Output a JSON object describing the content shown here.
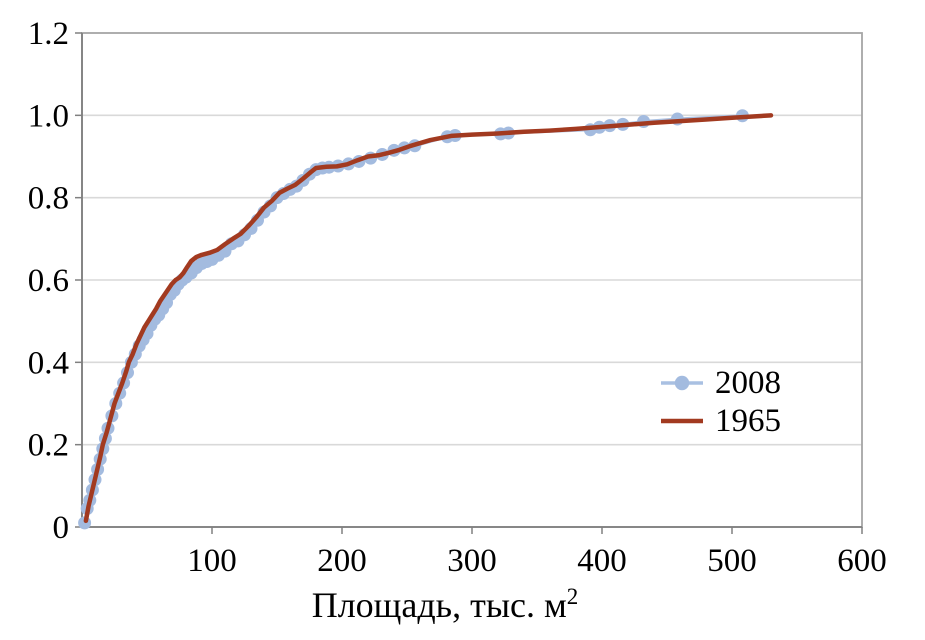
{
  "chart_data": {
    "type": "line",
    "title": "",
    "xlabel": "Площадь, тыс. м",
    "xlabel_sup": "2",
    "ylabel": "",
    "xlim": [
      0,
      600
    ],
    "ylim": [
      0,
      1.2
    ],
    "x_ticks": [
      100,
      200,
      300,
      400,
      500,
      600
    ],
    "y_tick_values": [
      0,
      0.2,
      0.4,
      0.6,
      0.8,
      1.0,
      1.2
    ],
    "y_tick_labels": [
      "0",
      "0.2",
      "0.4",
      "0.6",
      "0.8",
      "1.0",
      "1.2"
    ],
    "grid": "horizontal",
    "legend_position": "inside-right",
    "colors": {
      "grid": "#d9d9d9",
      "frame": "#a6a6a6",
      "axis": "#808080",
      "text": "#000000",
      "background": "#ffffff"
    },
    "series": [
      {
        "name": "2008",
        "style": "line-with-markers",
        "color": "#a9c0e2",
        "marker_color": "#a3bbdf",
        "marker_radius": 6.5,
        "line_width": 3,
        "points": [
          [
            2,
            0.01
          ],
          [
            4,
            0.045
          ],
          [
            6,
            0.065
          ],
          [
            8,
            0.09
          ],
          [
            10,
            0.115
          ],
          [
            12,
            0.14
          ],
          [
            14,
            0.165
          ],
          [
            16,
            0.19
          ],
          [
            18,
            0.215
          ],
          [
            20,
            0.24
          ],
          [
            23,
            0.27
          ],
          [
            26,
            0.3
          ],
          [
            29,
            0.325
          ],
          [
            32,
            0.35
          ],
          [
            35,
            0.375
          ],
          [
            38,
            0.4
          ],
          [
            41,
            0.42
          ],
          [
            44,
            0.44
          ],
          [
            47,
            0.455
          ],
          [
            50,
            0.47
          ],
          [
            53,
            0.49
          ],
          [
            56,
            0.505
          ],
          [
            59,
            0.515
          ],
          [
            62,
            0.53
          ],
          [
            65,
            0.545
          ],
          [
            68,
            0.565
          ],
          [
            71,
            0.575
          ],
          [
            74,
            0.59
          ],
          [
            77,
            0.6
          ],
          [
            80,
            0.607
          ],
          [
            84,
            0.617
          ],
          [
            88,
            0.63
          ],
          [
            92,
            0.64
          ],
          [
            96,
            0.645
          ],
          [
            100,
            0.65
          ],
          [
            105,
            0.66
          ],
          [
            110,
            0.67
          ],
          [
            115,
            0.688
          ],
          [
            120,
            0.695
          ],
          [
            125,
            0.71
          ],
          [
            130,
            0.725
          ],
          [
            135,
            0.745
          ],
          [
            140,
            0.765
          ],
          [
            145,
            0.78
          ],
          [
            150,
            0.8
          ],
          [
            155,
            0.81
          ],
          [
            160,
            0.82
          ],
          [
            165,
            0.828
          ],
          [
            170,
            0.842
          ],
          [
            175,
            0.857
          ],
          [
            180,
            0.868
          ],
          [
            185,
            0.872
          ],
          [
            190,
            0.874
          ],
          [
            197,
            0.877
          ],
          [
            205,
            0.882
          ],
          [
            213,
            0.888
          ],
          [
            222,
            0.896
          ],
          [
            231,
            0.905
          ],
          [
            240,
            0.915
          ],
          [
            248,
            0.921
          ],
          [
            256,
            0.926
          ],
          [
            281,
            0.948
          ],
          [
            287,
            0.951
          ],
          [
            322,
            0.955
          ],
          [
            328,
            0.957
          ],
          [
            391,
            0.965
          ],
          [
            398,
            0.971
          ],
          [
            406,
            0.975
          ],
          [
            416,
            0.978
          ],
          [
            432,
            0.985
          ],
          [
            458,
            0.991
          ],
          [
            508,
            0.999
          ]
        ]
      },
      {
        "name": "1965",
        "style": "line",
        "color": "#a23a20",
        "line_width": 4.5,
        "points": [
          [
            3,
            0.015
          ],
          [
            5,
            0.05
          ],
          [
            8,
            0.09
          ],
          [
            11,
            0.13
          ],
          [
            14,
            0.17
          ],
          [
            16,
            0.2
          ],
          [
            19,
            0.23
          ],
          [
            22,
            0.265
          ],
          [
            25,
            0.3
          ],
          [
            28,
            0.325
          ],
          [
            31,
            0.35
          ],
          [
            34,
            0.378
          ],
          [
            36,
            0.4
          ],
          [
            39,
            0.42
          ],
          [
            42,
            0.445
          ],
          [
            45,
            0.465
          ],
          [
            48,
            0.485
          ],
          [
            51,
            0.5
          ],
          [
            54,
            0.515
          ],
          [
            57,
            0.53
          ],
          [
            60,
            0.548
          ],
          [
            63,
            0.562
          ],
          [
            66,
            0.576
          ],
          [
            69,
            0.59
          ],
          [
            72,
            0.6
          ],
          [
            75,
            0.606
          ],
          [
            78,
            0.617
          ],
          [
            81,
            0.632
          ],
          [
            84,
            0.646
          ],
          [
            88,
            0.656
          ],
          [
            92,
            0.661
          ],
          [
            98,
            0.666
          ],
          [
            104,
            0.673
          ],
          [
            110,
            0.687
          ],
          [
            116,
            0.7
          ],
          [
            122,
            0.712
          ],
          [
            128,
            0.731
          ],
          [
            134,
            0.752
          ],
          [
            140,
            0.776
          ],
          [
            146,
            0.792
          ],
          [
            152,
            0.812
          ],
          [
            158,
            0.822
          ],
          [
            164,
            0.831
          ],
          [
            170,
            0.846
          ],
          [
            176,
            0.862
          ],
          [
            180,
            0.872
          ],
          [
            188,
            0.875
          ],
          [
            196,
            0.876
          ],
          [
            204,
            0.881
          ],
          [
            212,
            0.891
          ],
          [
            220,
            0.9
          ],
          [
            228,
            0.903
          ],
          [
            236,
            0.909
          ],
          [
            244,
            0.916
          ],
          [
            252,
            0.925
          ],
          [
            268,
            0.94
          ],
          [
            284,
            0.95
          ],
          [
            300,
            0.953
          ],
          [
            320,
            0.956
          ],
          [
            340,
            0.96
          ],
          [
            360,
            0.963
          ],
          [
            380,
            0.967
          ],
          [
            400,
            0.972
          ],
          [
            420,
            0.977
          ],
          [
            440,
            0.982
          ],
          [
            460,
            0.986
          ],
          [
            480,
            0.99
          ],
          [
            500,
            0.994
          ],
          [
            530,
            1.0
          ]
        ]
      }
    ]
  }
}
